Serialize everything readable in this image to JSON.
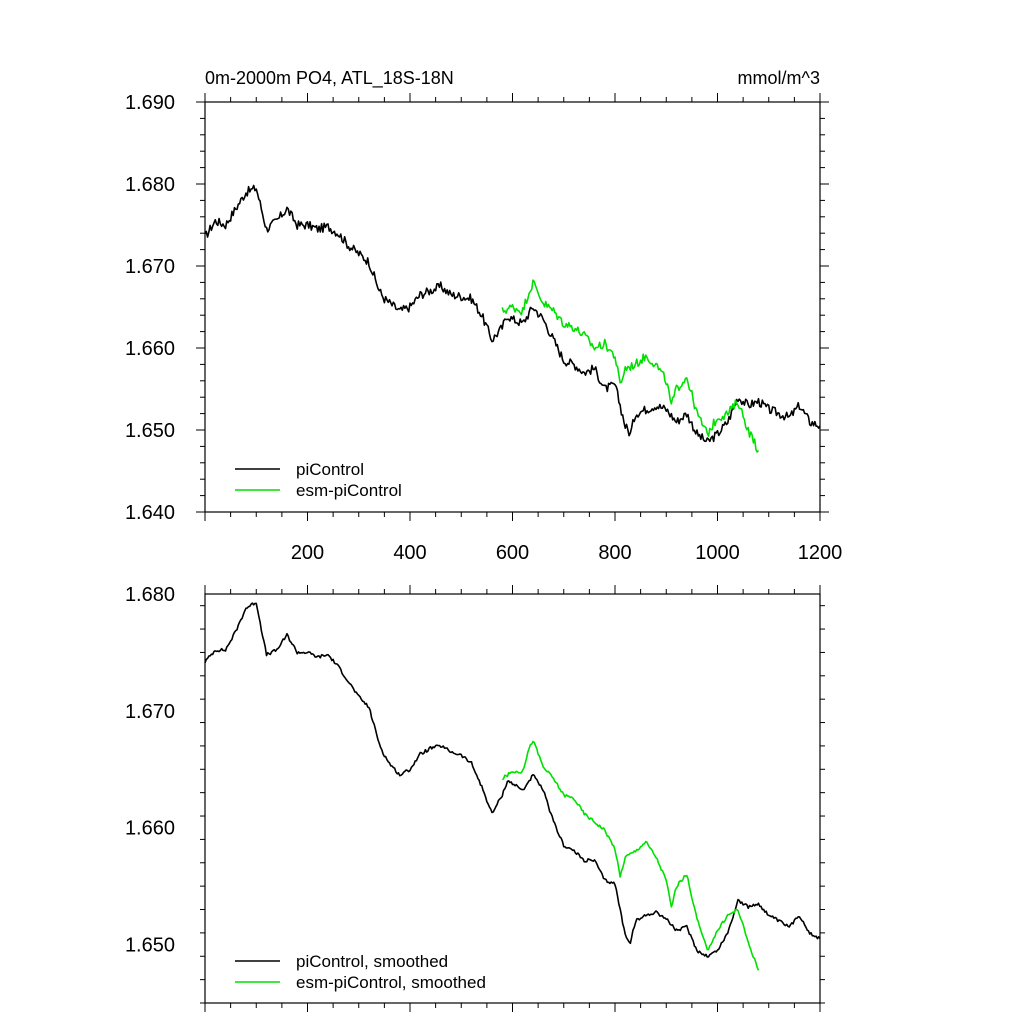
{
  "chart_data": [
    {
      "type": "line",
      "title": "0m-2000m PO4, ATL_18S-18N",
      "units": "mmol/m^3",
      "xlim": [
        0,
        1200
      ],
      "ylim": [
        1.64,
        1.69
      ],
      "xticks": [
        200,
        400,
        600,
        800,
        1000,
        1200
      ],
      "xtick_labels": [
        "200",
        "400",
        "600",
        "800",
        "1000",
        "1200"
      ],
      "yticks": [
        1.64,
        1.65,
        1.66,
        1.67,
        1.68,
        1.69
      ],
      "ytick_labels": [
        "1.640",
        "1.650",
        "1.660",
        "1.670",
        "1.680",
        "1.690"
      ],
      "grid": false,
      "legend_position": "bottom-left",
      "series": [
        {
          "name": "piControl",
          "color": "#000000",
          "x": [
            0,
            20,
            40,
            60,
            80,
            100,
            110,
            120,
            140,
            160,
            180,
            200,
            220,
            240,
            260,
            280,
            300,
            320,
            340,
            350,
            360,
            380,
            400,
            420,
            440,
            460,
            480,
            500,
            520,
            540,
            560,
            580,
            590,
            600,
            620,
            640,
            660,
            680,
            700,
            720,
            740,
            760,
            780,
            800,
            820,
            830,
            840,
            860,
            880,
            900,
            920,
            940,
            960,
            980,
            1000,
            1020,
            1040,
            1060,
            1080,
            1100,
            1120,
            1140,
            1160,
            1180,
            1200
          ],
          "y": [
            1.6735,
            1.6755,
            1.675,
            1.677,
            1.679,
            1.6795,
            1.677,
            1.6745,
            1.6755,
            1.677,
            1.675,
            1.675,
            1.6745,
            1.6748,
            1.674,
            1.6725,
            1.6715,
            1.6705,
            1.667,
            1.666,
            1.6655,
            1.6645,
            1.665,
            1.6665,
            1.667,
            1.6675,
            1.6665,
            1.6663,
            1.666,
            1.664,
            1.661,
            1.6625,
            1.664,
            1.6635,
            1.663,
            1.665,
            1.6635,
            1.661,
            1.6585,
            1.658,
            1.657,
            1.6575,
            1.655,
            1.6555,
            1.6505,
            1.6495,
            1.652,
            1.6525,
            1.653,
            1.6525,
            1.651,
            1.652,
            1.6495,
            1.6485,
            1.6495,
            1.651,
            1.654,
            1.653,
            1.6535,
            1.6525,
            1.652,
            1.6515,
            1.653,
            1.651,
            1.6505
          ]
        },
        {
          "name": "esm-piControl",
          "color": "#00e000",
          "x": [
            580,
            600,
            620,
            630,
            640,
            660,
            680,
            700,
            720,
            740,
            760,
            780,
            800,
            810,
            820,
            840,
            860,
            880,
            900,
            910,
            920,
            940,
            960,
            980,
            1000,
            1020,
            1040,
            1060,
            1080
          ],
          "y": [
            1.6645,
            1.665,
            1.6645,
            1.6665,
            1.668,
            1.6655,
            1.6645,
            1.663,
            1.6625,
            1.6615,
            1.66,
            1.6605,
            1.659,
            1.6555,
            1.6575,
            1.658,
            1.659,
            1.658,
            1.656,
            1.653,
            1.655,
            1.6565,
            1.652,
            1.6495,
            1.6515,
            1.652,
            1.6535,
            1.65,
            1.6475
          ]
        }
      ]
    },
    {
      "type": "line",
      "xlim": [
        0,
        1200
      ],
      "ylim": [
        1.645,
        1.68
      ],
      "xticks": [
        200,
        400,
        600,
        800,
        1000,
        1200
      ],
      "yticks": [
        1.65,
        1.66,
        1.67,
        1.68
      ],
      "ytick_labels": [
        "1.650",
        "1.660",
        "1.670",
        "1.680"
      ],
      "grid": false,
      "legend_position": "bottom-left",
      "series": [
        {
          "name": "piControl, smoothed",
          "color": "#000000",
          "x": [
            0,
            20,
            40,
            60,
            80,
            100,
            110,
            120,
            140,
            160,
            180,
            200,
            220,
            240,
            260,
            280,
            300,
            320,
            340,
            350,
            360,
            380,
            400,
            420,
            440,
            460,
            480,
            500,
            520,
            540,
            560,
            580,
            590,
            600,
            620,
            640,
            660,
            680,
            700,
            720,
            740,
            760,
            780,
            800,
            820,
            830,
            840,
            860,
            880,
            900,
            920,
            940,
            960,
            980,
            1000,
            1020,
            1040,
            1060,
            1080,
            1100,
            1120,
            1140,
            1160,
            1180,
            1200
          ],
          "y": [
            1.6742,
            1.6752,
            1.6752,
            1.6768,
            1.6788,
            1.6793,
            1.677,
            1.6748,
            1.6752,
            1.6765,
            1.675,
            1.675,
            1.6746,
            1.6748,
            1.6738,
            1.6725,
            1.6712,
            1.6703,
            1.6672,
            1.6662,
            1.6655,
            1.6645,
            1.665,
            1.6663,
            1.6668,
            1.667,
            1.6665,
            1.6662,
            1.6655,
            1.6635,
            1.6612,
            1.6628,
            1.664,
            1.6638,
            1.6632,
            1.6645,
            1.6632,
            1.6605,
            1.6585,
            1.658,
            1.6572,
            1.6572,
            1.6555,
            1.6552,
            1.6508,
            1.6502,
            1.652,
            1.6525,
            1.6528,
            1.6522,
            1.6512,
            1.6515,
            1.6495,
            1.649,
            1.6495,
            1.651,
            1.6538,
            1.6532,
            1.6535,
            1.6525,
            1.652,
            1.6515,
            1.6525,
            1.651,
            1.6505
          ]
        },
        {
          "name": "esm-piControl, smoothed",
          "color": "#00e000",
          "x": [
            580,
            600,
            620,
            630,
            640,
            660,
            680,
            700,
            720,
            740,
            760,
            780,
            800,
            810,
            820,
            840,
            860,
            880,
            900,
            910,
            920,
            940,
            960,
            980,
            1000,
            1020,
            1040,
            1060,
            1080
          ],
          "y": [
            1.6642,
            1.6648,
            1.6648,
            1.6665,
            1.6675,
            1.6652,
            1.6642,
            1.6628,
            1.6625,
            1.6612,
            1.6605,
            1.6598,
            1.6582,
            1.6558,
            1.6575,
            1.658,
            1.6588,
            1.6575,
            1.6555,
            1.6532,
            1.655,
            1.656,
            1.6522,
            1.6495,
            1.6512,
            1.6525,
            1.653,
            1.6502,
            1.6478
          ]
        }
      ]
    }
  ]
}
